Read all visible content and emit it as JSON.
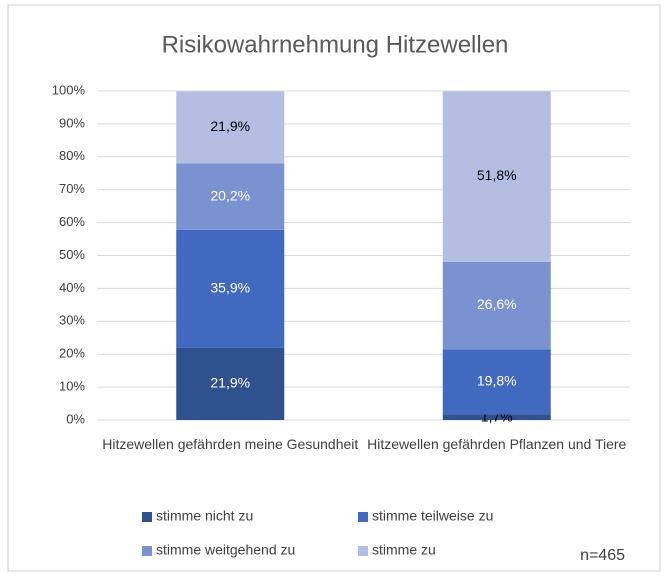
{
  "chart_data": {
    "type": "stacked_bar",
    "title": "Risikowahrnehmung Hitzewellen",
    "categories": [
      "Hitzewellen gefährden meine Gesundheit",
      "Hitzewellen gefährden Pflanzen und Tiere"
    ],
    "series": [
      {
        "name": "stimme nicht zu",
        "color": "#2f528f",
        "values": [
          21.9,
          1.7
        ],
        "value_labels": [
          "21,9%",
          "1,7%"
        ]
      },
      {
        "name": "stimme teilweise zu",
        "color": "#4169bf",
        "values": [
          35.9,
          19.8
        ],
        "value_labels": [
          "35,9%",
          "19,8%"
        ]
      },
      {
        "name": "stimme weitgehend zu",
        "color": "#7b92d0",
        "values": [
          20.2,
          26.6
        ],
        "value_labels": [
          "20,2%",
          "26,6%"
        ]
      },
      {
        "name": "stimme zu",
        "color": "#b3bee2",
        "values": [
          21.9,
          51.8
        ],
        "value_labels": [
          "21,9%",
          "51,8%"
        ]
      }
    ],
    "ylim": [
      0,
      100
    ],
    "yticks": [
      {
        "value": 0,
        "label": "0%"
      },
      {
        "value": 10,
        "label": "10%"
      },
      {
        "value": 20,
        "label": "20%"
      },
      {
        "value": 30,
        "label": "30%"
      },
      {
        "value": 40,
        "label": "40%"
      },
      {
        "value": 50,
        "label": "50%"
      },
      {
        "value": 60,
        "label": "60%"
      },
      {
        "value": 70,
        "label": "70%"
      },
      {
        "value": 80,
        "label": "80%"
      },
      {
        "value": 90,
        "label": "90%"
      },
      {
        "value": 100,
        "label": "100%"
      }
    ],
    "grid": true,
    "legend": "bottom",
    "annotations": [
      "n=465"
    ]
  }
}
